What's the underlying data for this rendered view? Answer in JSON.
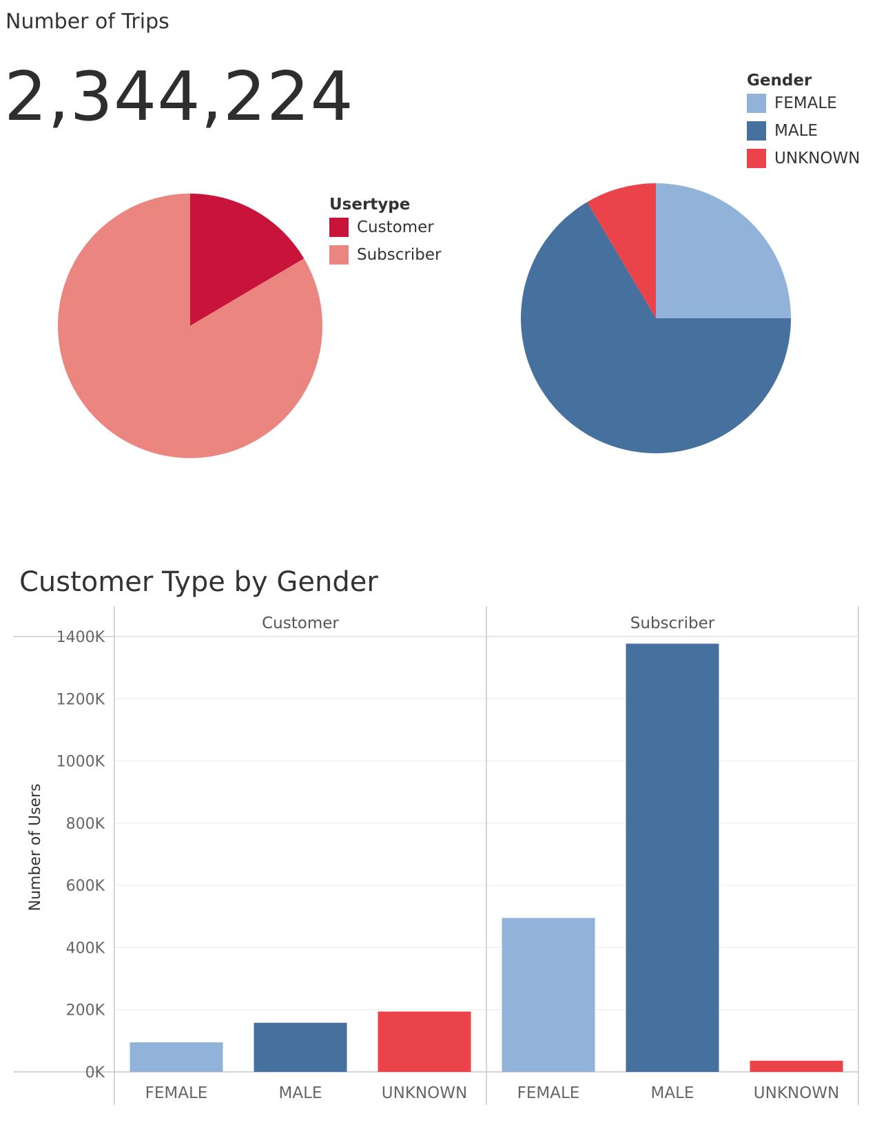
{
  "kpi": {
    "title": "Number of Trips",
    "value": "2,344,224"
  },
  "legends": {
    "usertype": {
      "title": "Usertype",
      "items": [
        {
          "label": "Customer",
          "color": "#c8143a"
        },
        {
          "label": "Subscriber",
          "color": "#eb8580"
        }
      ]
    },
    "gender": {
      "title": "Gender",
      "items": [
        {
          "label": "FEMALE",
          "color": "#92b3d9"
        },
        {
          "label": "MALE",
          "color": "#46709e"
        },
        {
          "label": "UNKNOWN",
          "color": "#ea434a"
        }
      ]
    }
  },
  "chart_data": [
    {
      "type": "pie",
      "title": "",
      "labels": [
        "Customer",
        "Subscriber"
      ],
      "values": [
        16.5,
        83.5
      ],
      "colors": [
        "#c8143a",
        "#eb8580"
      ]
    },
    {
      "type": "pie",
      "title": "",
      "labels": [
        "FEMALE",
        "MALE",
        "UNKNOWN"
      ],
      "values": [
        25,
        66.5,
        8.5
      ],
      "colors": [
        "#92b3d9",
        "#46709e",
        "#ea434a"
      ]
    },
    {
      "type": "bar",
      "title": "Customer Type by Gender",
      "ylabel": "Number of Users",
      "ylim": [
        0,
        1400000
      ],
      "yticks": [
        0,
        200000,
        400000,
        600000,
        800000,
        1000000,
        1200000,
        1400000
      ],
      "ytick_labels": [
        "0K",
        "200K",
        "400K",
        "600K",
        "800K",
        "1000K",
        "1200K",
        "1400K"
      ],
      "panels": [
        "Customer",
        "Subscriber"
      ],
      "categories": [
        "FEMALE",
        "MALE",
        "UNKNOWN"
      ],
      "colors": [
        "#92b3d9",
        "#46709e",
        "#ea434a"
      ],
      "series": [
        {
          "name": "Customer",
          "values": [
            95000,
            158000,
            194000
          ]
        },
        {
          "name": "Subscriber",
          "values": [
            495000,
            1377000,
            36000
          ]
        }
      ],
      "grid": true
    }
  ]
}
